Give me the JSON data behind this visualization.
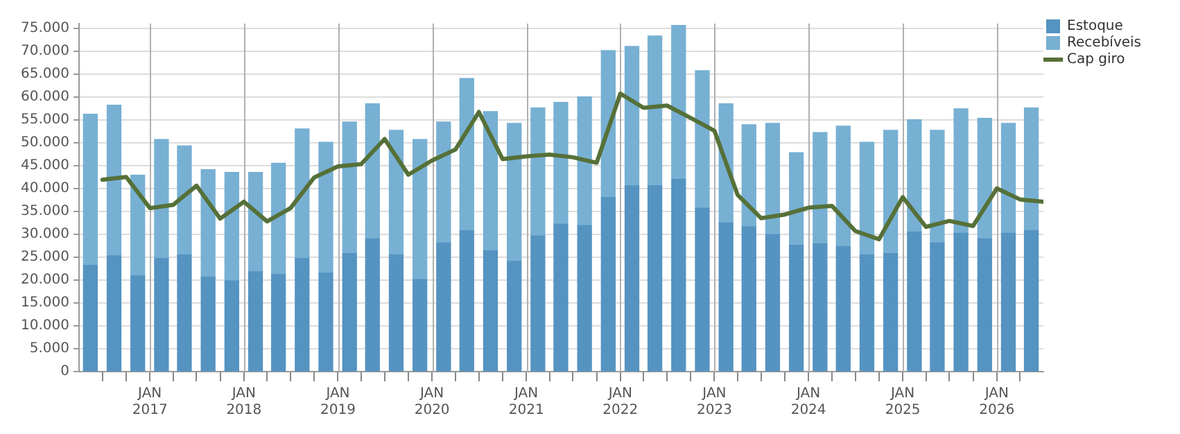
{
  "chart_data": {
    "type": "bar",
    "stacked": true,
    "grid": true,
    "legend": "top right",
    "marker": "none",
    "line_style": "solid",
    "x": [
      "2016-05-15",
      "2016-08-15",
      "2016-11-15",
      "2017-02-15",
      "2017-05-15",
      "2017-08-15",
      "2017-11-15",
      "2018-02-15",
      "2018-05-15",
      "2018-08-15",
      "2018-11-15",
      "2019-02-15",
      "2019-05-15",
      "2019-08-15",
      "2019-11-15",
      "2020-02-15",
      "2020-05-15",
      "2020-08-15",
      "2020-11-15",
      "2021-02-15",
      "2021-05-15",
      "2021-08-15",
      "2021-11-15",
      "2022-02-15",
      "2022-05-15",
      "2022-08-15",
      "2022-11-15",
      "2023-02-15",
      "2023-05-15",
      "2023-08-15",
      "2023-11-15",
      "2024-02-15",
      "2024-05-15",
      "2024-08-15",
      "2024-11-15",
      "2025-02-15",
      "2025-05-15",
      "2025-08-15",
      "2025-11-15",
      "2026-02-15",
      "2026-05-15"
    ],
    "series": [
      {
        "name": "Estoque",
        "color": "#5593c1",
        "values": [
          23200,
          25300,
          20900,
          24700,
          25500,
          20600,
          19800,
          21800,
          21200,
          24700,
          21500,
          25800,
          29000,
          25500,
          20100,
          28100,
          30800,
          26400,
          24100,
          29600,
          32200,
          31900,
          38000,
          40600,
          40600,
          42000,
          35700,
          32500,
          31600,
          29900,
          27600,
          27900,
          27300,
          25500,
          25800,
          30500,
          28100,
          30200,
          29000,
          30200,
          30800
        ]
      },
      {
        "name": "Recebíveis",
        "color": "#77b0d3",
        "values": [
          33000,
          32900,
          22000,
          26000,
          23800,
          23500,
          23700,
          21700,
          24300,
          28300,
          28600,
          28700,
          29500,
          27200,
          30600,
          26400,
          33200,
          30400,
          30100,
          28000,
          26600,
          28100,
          32100,
          30400,
          32700,
          33600,
          30000,
          26000,
          22300,
          24300,
          20200,
          24300,
          26300,
          24600,
          26900,
          24500,
          24600,
          27200,
          26300,
          24000,
          26800
        ]
      },
      {
        "name": "Cap giro",
        "type": "line",
        "color": "#567038",
        "x": [
          "2016-07-01",
          "2016-10-01",
          "2017-01-01",
          "2017-04-01",
          "2017-07-01",
          "2017-10-01",
          "2018-01-01",
          "2018-04-01",
          "2018-07-01",
          "2018-10-01",
          "2019-01-01",
          "2019-04-01",
          "2019-07-01",
          "2019-10-01",
          "2020-01-01",
          "2020-04-01",
          "2020-07-01",
          "2020-10-01",
          "2021-01-01",
          "2021-04-01",
          "2021-07-01",
          "2021-10-01",
          "2022-01-01",
          "2022-04-01",
          "2022-07-01",
          "2022-10-01",
          "2023-01-01",
          "2023-04-01",
          "2023-07-01",
          "2023-10-01",
          "2024-01-01",
          "2024-04-01",
          "2024-07-01",
          "2024-10-01",
          "2025-01-01",
          "2025-04-01",
          "2025-07-01",
          "2025-10-01",
          "2026-01-01",
          "2026-04-01",
          "2026-07-01"
        ],
        "values": [
          41900,
          42500,
          35700,
          36400,
          40600,
          33400,
          37100,
          32800,
          35700,
          42400,
          44800,
          45300,
          50800,
          43000,
          46100,
          48500,
          56700,
          46400,
          47000,
          47400,
          46800,
          45600,
          60700,
          57600,
          58100,
          55400,
          52600,
          38600,
          33500,
          34300,
          35800,
          36200,
          30700,
          28900,
          38100,
          31600,
          32900,
          31800,
          40000,
          37600,
          37100
        ]
      }
    ],
    "xlim": [
      "2016-04-01",
      "2026-07-01"
    ],
    "xticks": [
      {
        "value": "2016-07-01",
        "label": null
      },
      {
        "value": "2016-10-01",
        "label": null
      },
      {
        "value": "2017-01-01",
        "label": "JAN\n2017"
      },
      {
        "value": "2017-04-01",
        "label": null
      },
      {
        "value": "2017-07-01",
        "label": null
      },
      {
        "value": "2017-10-01",
        "label": null
      },
      {
        "value": "2018-01-01",
        "label": "JAN\n2018"
      },
      {
        "value": "2018-04-01",
        "label": null
      },
      {
        "value": "2018-07-01",
        "label": null
      },
      {
        "value": "2018-10-01",
        "label": null
      },
      {
        "value": "2019-01-01",
        "label": "JAN\n2019"
      },
      {
        "value": "2019-04-01",
        "label": null
      },
      {
        "value": "2019-07-01",
        "label": null
      },
      {
        "value": "2019-10-01",
        "label": null
      },
      {
        "value": "2020-01-01",
        "label": "JAN\n2020"
      },
      {
        "value": "2020-04-01",
        "label": null
      },
      {
        "value": "2020-07-01",
        "label": null
      },
      {
        "value": "2020-10-01",
        "label": null
      },
      {
        "value": "2021-01-01",
        "label": "JAN\n2021"
      },
      {
        "value": "2021-04-01",
        "label": null
      },
      {
        "value": "2021-07-01",
        "label": null
      },
      {
        "value": "2021-10-01",
        "label": null
      },
      {
        "value": "2022-01-01",
        "label": "JAN\n2022"
      },
      {
        "value": "2022-04-01",
        "label": null
      },
      {
        "value": "2022-07-01",
        "label": null
      },
      {
        "value": "2022-10-01",
        "label": null
      },
      {
        "value": "2023-01-01",
        "label": "JAN\n2023"
      },
      {
        "value": "2023-04-01",
        "label": null
      },
      {
        "value": "2023-07-01",
        "label": null
      },
      {
        "value": "2023-10-01",
        "label": null
      },
      {
        "value": "2024-01-01",
        "label": "JAN\n2024"
      },
      {
        "value": "2024-04-01",
        "label": null
      },
      {
        "value": "2024-07-01",
        "label": null
      },
      {
        "value": "2024-10-01",
        "label": null
      },
      {
        "value": "2025-01-01",
        "label": "JAN\n2025"
      },
      {
        "value": "2025-04-01",
        "label": null
      },
      {
        "value": "2025-07-01",
        "label": null
      },
      {
        "value": "2025-10-01",
        "label": null
      },
      {
        "value": "2026-01-01",
        "label": "JAN\n2026"
      },
      {
        "value": "2026-04-01",
        "label": null
      }
    ],
    "ylim": [
      0,
      76000
    ],
    "yticks": [
      {
        "value": 0,
        "label": "0"
      },
      {
        "value": 5000,
        "label": "5.000"
      },
      {
        "value": 10000,
        "label": "10.000"
      },
      {
        "value": 15000,
        "label": "15.000"
      },
      {
        "value": 20000,
        "label": "20.000"
      },
      {
        "value": 25000,
        "label": "25.000"
      },
      {
        "value": 30000,
        "label": "30.000"
      },
      {
        "value": 35000,
        "label": "35.000"
      },
      {
        "value": 40000,
        "label": "40.000"
      },
      {
        "value": 45000,
        "label": "45.000"
      },
      {
        "value": 50000,
        "label": "50.000"
      },
      {
        "value": 55000,
        "label": "55.000"
      },
      {
        "value": 60000,
        "label": "60.000"
      },
      {
        "value": 65000,
        "label": "65.000"
      },
      {
        "value": 70000,
        "label": "70.000"
      },
      {
        "value": 75000,
        "label": "75.000"
      }
    ]
  }
}
